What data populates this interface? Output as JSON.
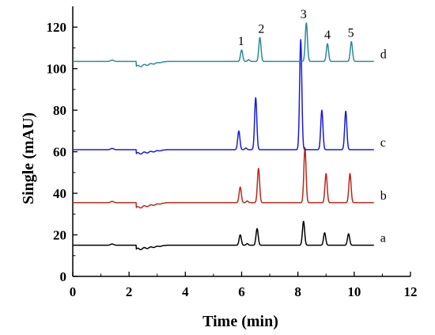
{
  "chart_data": {
    "type": "line",
    "xlabel": "Time (min)",
    "ylabel": "Single (mAU)",
    "xlim": [
      0,
      12
    ],
    "ylim": [
      0,
      130
    ],
    "x_ticks": [
      0,
      2,
      4,
      6,
      8,
      10,
      12
    ],
    "y_ticks": [
      0,
      20,
      40,
      60,
      80,
      100,
      120
    ],
    "x_tick_labels": [
      "0",
      "2",
      "4",
      "6",
      "8",
      "10",
      "12"
    ],
    "y_tick_labels": [
      "0",
      "20",
      "40",
      "60",
      "80",
      "100",
      "120"
    ],
    "grid": false,
    "x_end": 10.7,
    "series": [
      {
        "name": "a",
        "color": "#000000",
        "baseline": 15,
        "dip": [
          2.25,
          13
        ],
        "peaks": [
          {
            "t": 5.95,
            "h": 20
          },
          {
            "t": 6.55,
            "h": 23
          },
          {
            "t": 8.2,
            "h": 26.5
          },
          {
            "t": 8.95,
            "h": 21
          },
          {
            "t": 9.8,
            "h": 20.5
          }
        ]
      },
      {
        "name": "b",
        "color": "#b8291c",
        "baseline": 35.5,
        "dip": [
          2.25,
          33
        ],
        "peaks": [
          {
            "t": 5.95,
            "h": 43
          },
          {
            "t": 6.6,
            "h": 52
          },
          {
            "t": 8.25,
            "h": 62
          },
          {
            "t": 9.0,
            "h": 49.5
          },
          {
            "t": 9.85,
            "h": 49.5
          }
        ]
      },
      {
        "name": "c",
        "color": "#1a1ad6",
        "baseline": 61,
        "dip": [
          2.25,
          59
        ],
        "peaks": [
          {
            "t": 5.9,
            "h": 70
          },
          {
            "t": 6.5,
            "h": 86
          },
          {
            "t": 8.1,
            "h": 114
          },
          {
            "t": 8.85,
            "h": 80
          },
          {
            "t": 9.7,
            "h": 79.5
          }
        ]
      },
      {
        "name": "d",
        "color": "#2b8a96",
        "baseline": 103.5,
        "dip": [
          2.25,
          101
        ],
        "peaks": [
          {
            "t": 6.0,
            "h": 109
          },
          {
            "t": 6.65,
            "h": 115
          },
          {
            "t": 8.3,
            "h": 122
          },
          {
            "t": 9.05,
            "h": 112
          },
          {
            "t": 9.9,
            "h": 113
          }
        ]
      }
    ],
    "annotations": [
      {
        "text": "1",
        "t": 5.98
      },
      {
        "text": "2",
        "t": 6.7
      },
      {
        "text": "3",
        "t": 8.2
      },
      {
        "text": "4",
        "t": 9.05
      },
      {
        "text": "5",
        "t": 9.88
      }
    ]
  }
}
